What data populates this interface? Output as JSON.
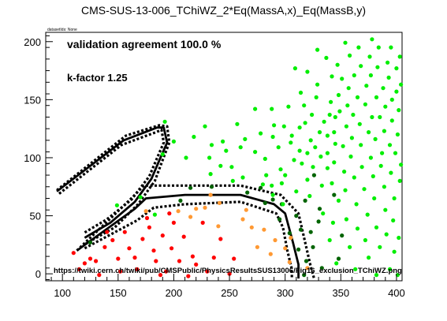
{
  "header": {
    "title": "CMS-SUS-13-006_TChiWZ_2*Eq(MassA,x)_Eq(MassB,y)",
    "dataset_label": "datasetIds: None"
  },
  "chart_data": {
    "type": "scatter",
    "xlim": [
      85,
      405
    ],
    "ylim": [
      -6,
      208
    ],
    "x_ticks": [
      100,
      150,
      200,
      250,
      300,
      350,
      400
    ],
    "y_ticks": [
      0,
      50,
      100,
      150,
      200
    ],
    "grid": false,
    "annotations": {
      "validation": "validation agreement 100.0 %",
      "kfactor": "k-factor 1.25",
      "url": "https://twiki.cern.ch/twiki/pub/CMSPublic/PhysicsResultsSUS13006/Fig16_exclusion_TChiWZ.png"
    },
    "colors": {
      "excluded": "#ff0000",
      "excluded_uncertain": "#ff9933",
      "allowed_uncertain": "#006400",
      "allowed": "#00ee00",
      "contour": "#000000"
    },
    "series": [
      {
        "color": "#ff0000",
        "points": [
          [
            110,
            18
          ],
          [
            115,
            4
          ],
          [
            120,
            9
          ],
          [
            125,
            13
          ],
          [
            130,
            11
          ],
          [
            133,
            -1
          ],
          [
            138,
            23
          ],
          [
            140,
            36
          ],
          [
            145,
            29
          ],
          [
            150,
            13
          ],
          [
            152,
            2
          ],
          [
            156,
            36
          ],
          [
            160,
            22
          ],
          [
            165,
            14
          ],
          [
            167,
            4
          ],
          [
            172,
            30
          ],
          [
            176,
            48
          ],
          [
            178,
            40
          ],
          [
            182,
            20
          ],
          [
            184,
            11
          ],
          [
            188,
            -1
          ],
          [
            190,
            33
          ],
          [
            193,
            2
          ],
          [
            196,
            52
          ],
          [
            198,
            22
          ],
          [
            200,
            44
          ],
          [
            205,
            11
          ],
          [
            209,
            32
          ],
          [
            213,
            -2
          ],
          [
            217,
            15
          ],
          [
            220,
            8
          ],
          [
            226,
            44
          ],
          [
            230,
            2
          ],
          [
            236,
            14
          ],
          [
            242,
            30
          ],
          [
            250,
            0
          ],
          [
            254,
            13
          ]
        ]
      },
      {
        "color": "#ff9933",
        "points": [
          [
            175,
            54
          ],
          [
            204,
            54
          ],
          [
            215,
            49
          ],
          [
            220,
            56
          ],
          [
            228,
            57
          ],
          [
            233,
            68
          ],
          [
            240,
            41
          ],
          [
            241,
            61
          ],
          [
            262,
            47
          ],
          [
            265,
            55
          ],
          [
            270,
            40
          ],
          [
            275,
            23
          ],
          [
            281,
            38
          ],
          [
            287,
            17
          ],
          [
            291,
            29
          ],
          [
            300,
            22
          ],
          [
            304,
            10
          ],
          [
            305,
            31
          ],
          [
            320,
            5
          ]
        ]
      },
      {
        "color": "#006400",
        "points": [
          [
            125,
            27
          ],
          [
            206,
            63
          ],
          [
            215,
            74
          ],
          [
            234,
            75
          ],
          [
            266,
            70
          ],
          [
            278,
            74
          ],
          [
            282,
            61
          ],
          [
            289,
            64
          ],
          [
            295,
            47
          ],
          [
            297,
            60
          ],
          [
            304,
            35
          ],
          [
            310,
            50
          ],
          [
            312,
            21
          ],
          [
            314,
            38
          ],
          [
            317,
            -1
          ],
          [
            318,
            63
          ],
          [
            319,
            11
          ],
          [
            323,
            36
          ],
          [
            325,
            23
          ],
          [
            326,
            85
          ],
          [
            330,
            45
          ],
          [
            331,
            56
          ],
          [
            333,
            5
          ],
          [
            344,
            68
          ],
          [
            348,
            13
          ],
          [
            351,
            33
          ]
        ]
      },
      {
        "color": "#00ee00",
        "points": [
          [
            149,
            59
          ],
          [
            170,
            66
          ],
          [
            183,
            51
          ],
          [
            190,
            103
          ],
          [
            192,
            131
          ],
          [
            200,
            114
          ],
          [
            211,
            100
          ],
          [
            218,
            118
          ],
          [
            228,
            127
          ],
          [
            232,
            100
          ],
          [
            233,
            86
          ],
          [
            234,
            111
          ],
          [
            242,
            93
          ],
          [
            244,
            114
          ],
          [
            247,
            106
          ],
          [
            252,
            92
          ],
          [
            253,
            80
          ],
          [
            257,
            129
          ],
          [
            260,
            109
          ],
          [
            262,
            83
          ],
          [
            264,
            116
          ],
          [
            273,
            142
          ],
          [
            273,
            105
          ],
          [
            278,
            121
          ],
          [
            280,
            77
          ],
          [
            282,
            99
          ],
          [
            283,
            85
          ],
          [
            288,
            76
          ],
          [
            288,
            142
          ],
          [
            289,
            68
          ],
          [
            289,
            118
          ],
          [
            290,
            128
          ],
          [
            294,
            109
          ],
          [
            296,
            90
          ],
          [
            297,
            78
          ],
          [
            298,
            60
          ],
          [
            299,
            127
          ],
          [
            300,
            85
          ],
          [
            303,
            144
          ],
          [
            305,
            113
          ],
          [
            306,
            119
          ],
          [
            308,
            98
          ],
          [
            309,
            177
          ],
          [
            310,
            71
          ],
          [
            313,
            106
          ],
          [
            313,
            126
          ],
          [
            314,
            156
          ],
          [
            315,
            95
          ],
          [
            317,
            145
          ],
          [
            318,
            130
          ],
          [
            320,
            174
          ],
          [
            320,
            81
          ],
          [
            320,
            104
          ],
          [
            322,
            67
          ],
          [
            323,
            115
          ],
          [
            324,
            137
          ],
          [
            325,
            92
          ],
          [
            327,
            109
          ],
          [
            328,
            152
          ],
          [
            329,
            193
          ],
          [
            329,
            163
          ],
          [
            331,
            122
          ],
          [
            332,
            101
          ],
          [
            333,
            76
          ],
          [
            334,
            52
          ],
          [
            335,
            131
          ],
          [
            337,
            186
          ],
          [
            338,
            91
          ],
          [
            338,
            104
          ],
          [
            338,
            119
          ],
          [
            340,
            137
          ],
          [
            340,
            29
          ],
          [
            341,
            148
          ],
          [
            342,
            170
          ],
          [
            342,
            78
          ],
          [
            343,
            44
          ],
          [
            344,
            96
          ],
          [
            344,
            122
          ],
          [
            345,
            135
          ],
          [
            345,
            112
          ],
          [
            346,
            9
          ],
          [
            347,
            180
          ],
          [
            348,
            63
          ],
          [
            348,
            154
          ],
          [
            349,
            140
          ],
          [
            351,
            168
          ],
          [
            352,
            110
          ],
          [
            353,
            88
          ],
          [
            354,
            72
          ],
          [
            354,
            199
          ],
          [
            355,
            127
          ],
          [
            355,
            47
          ],
          [
            356,
            145
          ],
          [
            357,
            160
          ],
          [
            358,
            23
          ],
          [
            358,
            188
          ],
          [
            359,
            101
          ],
          [
            360,
            117
          ],
          [
            361,
            137
          ],
          [
            362,
            83
          ],
          [
            362,
            171
          ],
          [
            363,
            4
          ],
          [
            364,
            60
          ],
          [
            365,
            152
          ],
          [
            365,
            39
          ],
          [
            366,
            195
          ],
          [
            367,
            129
          ],
          [
            368,
            111
          ],
          [
            368,
            179
          ],
          [
            369,
            92
          ],
          [
            371,
            73
          ],
          [
            372,
            146
          ],
          [
            372,
            29
          ],
          [
            373,
            162
          ],
          [
            374,
            51
          ],
          [
            375,
            14
          ],
          [
            375,
            122
          ],
          [
            376,
            187
          ],
          [
            377,
            100
          ],
          [
            377,
            171
          ],
          [
            378,
            202
          ],
          [
            378,
            135
          ],
          [
            379,
            84
          ],
          [
            380,
            65
          ],
          [
            381,
            116
          ],
          [
            382,
            152
          ],
          [
            382,
            -1
          ],
          [
            382,
            40
          ],
          [
            383,
            178
          ],
          [
            384,
            195
          ],
          [
            385,
            23
          ],
          [
            385,
            135
          ],
          [
            386,
            93
          ],
          [
            387,
            104
          ],
          [
            388,
            160
          ],
          [
            389,
            75
          ],
          [
            389,
            123
          ],
          [
            390,
            55
          ],
          [
            390,
            144
          ],
          [
            391,
            34
          ],
          [
            392,
            182
          ],
          [
            393,
            169
          ],
          [
            394,
            111
          ],
          [
            394,
            4
          ],
          [
            395,
            195
          ],
          [
            395,
            87
          ],
          [
            396,
            132
          ],
          [
            396,
            150
          ],
          [
            397,
            46
          ],
          [
            398,
            65
          ],
          [
            398,
            19
          ],
          [
            399,
            104
          ],
          [
            400,
            157
          ],
          [
            400,
            177
          ],
          [
            401,
            120
          ],
          [
            401,
            -1
          ],
          [
            402,
            141
          ],
          [
            402,
            31
          ],
          [
            403,
            187
          ],
          [
            403,
            80
          ],
          [
            404,
            94
          ],
          [
            404,
            163
          ]
        ]
      }
    ],
    "contour": {
      "main": [
        [
          113,
          20
        ],
        [
          165,
          56
        ],
        [
          175,
          65
        ],
        [
          210,
          68
        ],
        [
          260,
          68
        ],
        [
          290,
          60
        ],
        [
          300,
          52
        ],
        [
          307,
          27
        ],
        [
          312,
          8
        ],
        [
          312,
          -4
        ]
      ],
      "upper": [
        [
          113,
          20
        ],
        [
          163,
          66
        ],
        [
          173,
          76
        ],
        [
          210,
          76
        ],
        [
          260,
          76
        ],
        [
          296,
          68
        ],
        [
          312,
          52
        ],
        [
          318,
          27
        ],
        [
          323,
          6
        ],
        [
          326,
          -4
        ]
      ],
      "lower": [
        [
          120,
          22
        ],
        [
          167,
          46
        ],
        [
          182,
          57
        ],
        [
          210,
          60
        ],
        [
          260,
          62
        ],
        [
          292,
          52
        ],
        [
          298,
          40
        ],
        [
          302,
          20
        ],
        [
          306,
          4
        ],
        [
          306,
          -4
        ]
      ],
      "island_main": [
        [
          95,
          71
        ],
        [
          155,
          115
        ],
        [
          185,
          126
        ],
        [
          191,
          126
        ],
        [
          194,
          113
        ],
        [
          188,
          100
        ],
        [
          180,
          82
        ],
        [
          165,
          62
        ],
        [
          143,
          44
        ],
        [
          120,
          31
        ]
      ],
      "island_upper": [
        [
          95,
          72
        ],
        [
          157,
          119
        ],
        [
          187,
          128
        ],
        [
          194,
          127
        ],
        [
          196,
          113
        ],
        [
          190,
          98
        ],
        [
          183,
          80
        ],
        [
          168,
          60
        ],
        [
          147,
          40
        ],
        [
          121,
          26
        ]
      ],
      "island_lower": [
        [
          97,
          69
        ],
        [
          153,
          111
        ],
        [
          184,
          122
        ],
        [
          189,
          124
        ],
        [
          191,
          113
        ],
        [
          186,
          102
        ],
        [
          178,
          84
        ],
        [
          162,
          64
        ],
        [
          140,
          47
        ],
        [
          119,
          35
        ]
      ]
    }
  }
}
